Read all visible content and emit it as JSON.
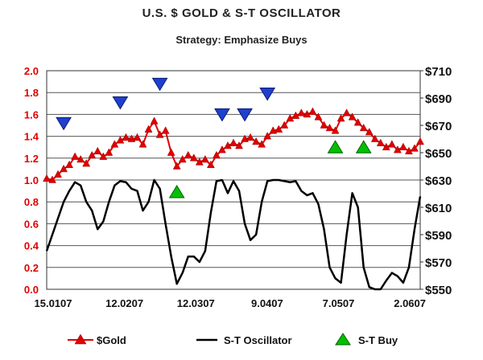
{
  "chart_data": {
    "type": "line",
    "title": "U.S. $ GOLD & S-T OSCILLATOR",
    "subtitle": "Strategy: Emphasize Buys",
    "x_ticks": [
      "15.0107",
      "12.0207",
      "12.0307",
      "9.0407",
      "7.0507",
      "2.0607"
    ],
    "left_axis": {
      "ylim": [
        0.0,
        2.0
      ],
      "ticks": [
        "0.0",
        "0.2",
        "0.4",
        "0.6",
        "0.8",
        "1.0",
        "1.2",
        "1.4",
        "1.6",
        "1.8",
        "2.0"
      ]
    },
    "right_axis": {
      "ylim": [
        550,
        710
      ],
      "ticks": [
        "$550",
        "$570",
        "$590",
        "$610",
        "$630",
        "$650",
        "$670",
        "$690",
        "$710"
      ]
    },
    "grid": "horizontal",
    "legend": {
      "placement": "bottom",
      "items": [
        "$Gold",
        "S-T Oscillator",
        "S-T Buy"
      ]
    },
    "series": [
      {
        "name": "$Gold",
        "axis": "right",
        "color": "#e00000",
        "marker": "triangle",
        "points": [
          [
            0,
            631
          ],
          [
            2,
            630
          ],
          [
            4,
            634
          ],
          [
            6,
            638
          ],
          [
            8,
            641
          ],
          [
            10,
            647
          ],
          [
            12,
            645
          ],
          [
            14,
            642
          ],
          [
            16,
            648
          ],
          [
            18,
            651
          ],
          [
            20,
            647
          ],
          [
            22,
            650
          ],
          [
            24,
            656
          ],
          [
            26,
            659
          ],
          [
            28,
            661
          ],
          [
            30,
            660
          ],
          [
            32,
            661
          ],
          [
            34,
            656
          ],
          [
            36,
            667
          ],
          [
            38,
            673
          ],
          [
            40,
            663
          ],
          [
            42,
            666
          ],
          [
            44,
            650
          ],
          [
            46,
            640
          ],
          [
            48,
            645
          ],
          [
            50,
            648
          ],
          [
            52,
            646
          ],
          [
            54,
            643
          ],
          [
            56,
            645
          ],
          [
            58,
            641
          ],
          [
            60,
            648
          ],
          [
            62,
            652
          ],
          [
            64,
            655
          ],
          [
            66,
            657
          ],
          [
            68,
            655
          ],
          [
            70,
            660
          ],
          [
            72,
            661
          ],
          [
            74,
            658
          ],
          [
            76,
            656
          ],
          [
            78,
            662
          ],
          [
            80,
            666
          ],
          [
            82,
            667
          ],
          [
            84,
            670
          ],
          [
            86,
            675
          ],
          [
            88,
            677
          ],
          [
            90,
            679
          ],
          [
            92,
            678
          ],
          [
            94,
            680
          ],
          [
            96,
            676
          ],
          [
            98,
            670
          ],
          [
            100,
            668
          ],
          [
            102,
            666
          ],
          [
            104,
            675
          ],
          [
            106,
            679
          ],
          [
            108,
            676
          ],
          [
            110,
            672
          ],
          [
            112,
            668
          ],
          [
            114,
            665
          ],
          [
            116,
            660
          ],
          [
            118,
            657
          ],
          [
            120,
            654
          ],
          [
            122,
            656
          ],
          [
            124,
            652
          ],
          [
            126,
            654
          ],
          [
            128,
            651
          ],
          [
            130,
            653
          ],
          [
            132,
            658
          ]
        ]
      },
      {
        "name": "S-T Oscillator",
        "axis": "left",
        "color": "#000000",
        "points": [
          [
            0,
            0.35
          ],
          [
            2,
            0.5
          ],
          [
            4,
            0.65
          ],
          [
            6,
            0.8
          ],
          [
            8,
            0.9
          ],
          [
            10,
            0.98
          ],
          [
            12,
            0.95
          ],
          [
            14,
            0.8
          ],
          [
            16,
            0.72
          ],
          [
            18,
            0.55
          ],
          [
            20,
            0.62
          ],
          [
            22,
            0.8
          ],
          [
            24,
            0.95
          ],
          [
            26,
            0.99
          ],
          [
            28,
            0.98
          ],
          [
            30,
            0.92
          ],
          [
            32,
            0.9
          ],
          [
            34,
            0.72
          ],
          [
            36,
            0.8
          ],
          [
            38,
            1.0
          ],
          [
            40,
            0.92
          ],
          [
            42,
            0.6
          ],
          [
            44,
            0.3
          ],
          [
            46,
            0.05
          ],
          [
            48,
            0.15
          ],
          [
            50,
            0.3
          ],
          [
            52,
            0.3
          ],
          [
            54,
            0.25
          ],
          [
            56,
            0.35
          ],
          [
            58,
            0.7
          ],
          [
            60,
            0.99
          ],
          [
            62,
            1.0
          ],
          [
            64,
            0.88
          ],
          [
            66,
            0.99
          ],
          [
            68,
            0.9
          ],
          [
            70,
            0.6
          ],
          [
            72,
            0.45
          ],
          [
            74,
            0.5
          ],
          [
            76,
            0.8
          ],
          [
            78,
            0.99
          ],
          [
            80,
            1.0
          ],
          [
            82,
            1.0
          ],
          [
            84,
            0.99
          ],
          [
            86,
            0.98
          ],
          [
            88,
            0.99
          ],
          [
            90,
            0.9
          ],
          [
            92,
            0.86
          ],
          [
            94,
            0.88
          ],
          [
            96,
            0.78
          ],
          [
            98,
            0.55
          ],
          [
            100,
            0.2
          ],
          [
            102,
            0.1
          ],
          [
            104,
            0.06
          ],
          [
            106,
            0.5
          ],
          [
            108,
            0.88
          ],
          [
            110,
            0.75
          ],
          [
            112,
            0.2
          ],
          [
            114,
            0.02
          ],
          [
            116,
            0.0
          ],
          [
            118,
            0.0
          ],
          [
            120,
            0.08
          ],
          [
            122,
            0.15
          ],
          [
            124,
            0.12
          ],
          [
            126,
            0.06
          ],
          [
            128,
            0.2
          ],
          [
            130,
            0.55
          ],
          [
            132,
            0.85
          ]
        ]
      }
    ],
    "markers": {
      "sell": {
        "color": "#1f3fd0",
        "points": [
          [
            6,
            1.52
          ],
          [
            26,
            1.71
          ],
          [
            40,
            1.88
          ],
          [
            62,
            1.6
          ],
          [
            70,
            1.6
          ],
          [
            78,
            1.79
          ]
        ]
      },
      "buy": {
        "color": "#00c000",
        "points": [
          [
            46,
            0.89
          ],
          [
            102,
            1.3
          ],
          [
            112,
            1.3
          ]
        ]
      }
    }
  }
}
